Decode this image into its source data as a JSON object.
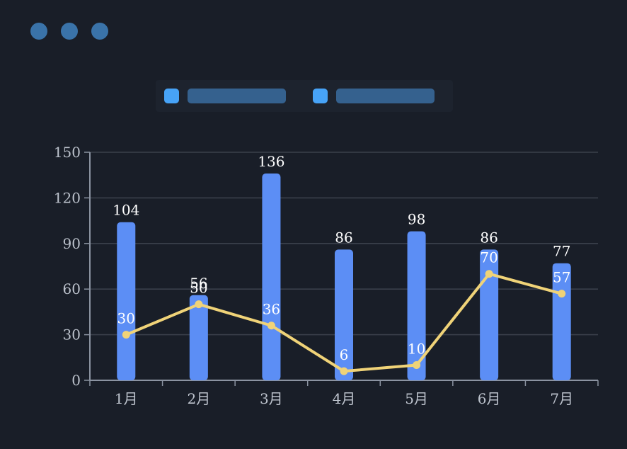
{
  "window": {
    "dot_color": "#3a73a9",
    "dots": [
      "window-dot-1",
      "window-dot-2",
      "window-dot-3"
    ]
  },
  "legend": {
    "panel_color": "#1d232e",
    "items": [
      {
        "swatch_color": "#47a3f7",
        "label_bar_color": "#35618e"
      },
      {
        "swatch_color": "#47a3f7",
        "label_bar_color": "#35618e"
      }
    ]
  },
  "chart_data": {
    "type": "bar",
    "title": "",
    "xlabel": "",
    "ylabel": "",
    "categories": [
      "1月",
      "2月",
      "3月",
      "4月",
      "5月",
      "6月",
      "7月"
    ],
    "series": [
      {
        "name": "bar-series",
        "type": "bar",
        "color": "#5c8ef5",
        "values": [
          104,
          56,
          136,
          86,
          98,
          86,
          77
        ]
      },
      {
        "name": "line-series",
        "type": "line",
        "color": "#f0d378",
        "values": [
          30,
          50,
          36,
          6,
          10,
          70,
          57
        ]
      }
    ],
    "ylim": [
      0,
      150
    ],
    "yticks": [
      0,
      30,
      60,
      90,
      120,
      150
    ],
    "grid": true,
    "legend_position": "top",
    "value_label_color": "#ffffff",
    "axis_label_color": "#bdc3cd",
    "axis_line_color": "#8b93a1",
    "grid_color": "#3a404b",
    "background_color": "#191e28"
  }
}
